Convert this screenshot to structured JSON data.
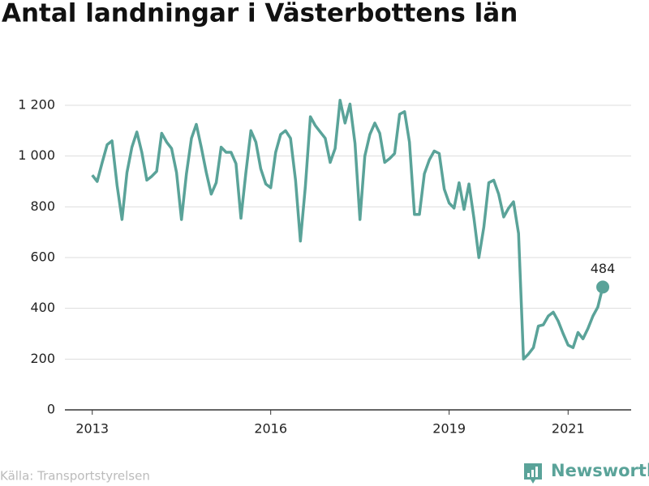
{
  "chart_data": {
    "type": "line",
    "title": "Antal landningar i Västerbottens län",
    "source": "Källa: Transportstyrelsen",
    "brand": "Newsworthy",
    "x": [
      2013,
      2013.083,
      2013.167,
      2013.25,
      2013.333,
      2013.417,
      2013.5,
      2013.583,
      2013.667,
      2013.75,
      2013.833,
      2013.917,
      2014,
      2014.083,
      2014.167,
      2014.25,
      2014.333,
      2014.417,
      2014.5,
      2014.583,
      2014.667,
      2014.75,
      2014.833,
      2014.917,
      2015,
      2015.083,
      2015.167,
      2015.25,
      2015.333,
      2015.417,
      2015.5,
      2015.583,
      2015.667,
      2015.75,
      2015.833,
      2015.917,
      2016,
      2016.083,
      2016.167,
      2016.25,
      2016.333,
      2016.417,
      2016.5,
      2016.583,
      2016.667,
      2016.75,
      2016.833,
      2016.917,
      2017,
      2017.083,
      2017.167,
      2017.25,
      2017.333,
      2017.417,
      2017.5,
      2017.583,
      2017.667,
      2017.75,
      2017.833,
      2017.917,
      2018,
      2018.083,
      2018.167,
      2018.25,
      2018.333,
      2018.417,
      2018.5,
      2018.583,
      2018.667,
      2018.75,
      2018.833,
      2018.917,
      2019,
      2019.083,
      2019.167,
      2019.25,
      2019.333,
      2019.417,
      2019.5,
      2019.583,
      2019.667,
      2019.75,
      2019.833,
      2019.917,
      2020,
      2020.083,
      2020.167,
      2020.25,
      2020.333,
      2020.417,
      2020.5,
      2020.583,
      2020.667,
      2020.75,
      2020.833,
      2020.917,
      2021,
      2021.083,
      2021.167,
      2021.25,
      2021.333,
      2021.417,
      2021.5,
      2021.583
    ],
    "series": [
      {
        "name": "Antal landningar",
        "color": "#5aa399",
        "values": [
          925,
          900,
          975,
          1045,
          1060,
          885,
          750,
          935,
          1035,
          1095,
          1015,
          905,
          920,
          940,
          1090,
          1055,
          1030,
          935,
          750,
          930,
          1070,
          1125,
          1035,
          935,
          850,
          895,
          1035,
          1015,
          1015,
          970,
          755,
          935,
          1100,
          1055,
          950,
          890,
          875,
          1015,
          1085,
          1100,
          1070,
          905,
          665,
          880,
          1155,
          1120,
          1095,
          1070,
          975,
          1030,
          1220,
          1130,
          1205,
          1050,
          750,
          1000,
          1085,
          1130,
          1090,
          975,
          990,
          1010,
          1165,
          1175,
          1055,
          770,
          770,
          930,
          985,
          1020,
          1010,
          870,
          815,
          795,
          895,
          790,
          890,
          755,
          600,
          720,
          895,
          905,
          850,
          760,
          795,
          820,
          695,
          200,
          220,
          245,
          330,
          335,
          370,
          385,
          350,
          300,
          255,
          245,
          305,
          280,
          320,
          370,
          405,
          484
        ]
      }
    ],
    "xlim": [
      2012.54,
      2022.06
    ],
    "xticks": [
      2013,
      2016,
      2019,
      2021
    ],
    "ylim": [
      0,
      1200
    ],
    "yticks": [
      0,
      200,
      400,
      600,
      800,
      {
        "value": 1000,
        "label": "1 000"
      },
      {
        "value": 1200,
        "label": "1 200"
      }
    ],
    "grid": true
  }
}
